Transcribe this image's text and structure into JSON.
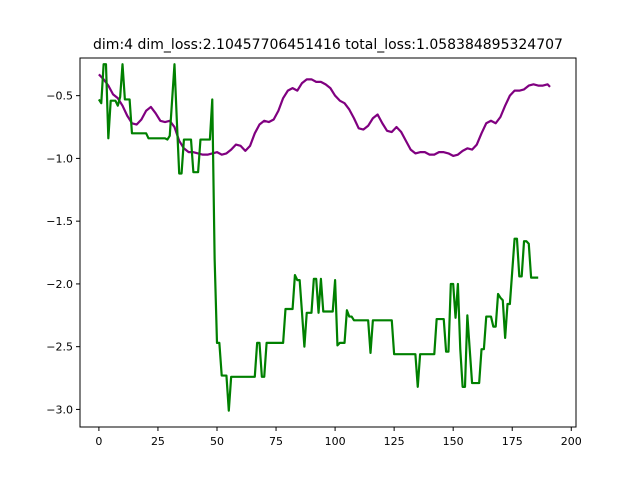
{
  "chart_data": {
    "type": "line",
    "title": "dim:4 dim_loss:2.10457706451416 total_loss:1.058384895324707",
    "xlabel": "",
    "ylabel": "",
    "xlim": [
      -8,
      202
    ],
    "ylim": [
      -3.14,
      -0.2
    ],
    "xticks": [
      0,
      25,
      50,
      75,
      100,
      125,
      150,
      175,
      200
    ],
    "yticks": [
      -0.5,
      -1.0,
      -1.5,
      -2.0,
      -2.5,
      -3.0
    ],
    "ytick_labels": [
      "−0.5",
      "−1.0",
      "−1.5",
      "−2.0",
      "−2.5",
      "−3.0"
    ],
    "grid": false,
    "series": [
      {
        "color": "#800080",
        "points": [
          [
            0,
            -0.33
          ],
          [
            2,
            -0.37
          ],
          [
            4,
            -0.42
          ],
          [
            6,
            -0.49
          ],
          [
            8,
            -0.52
          ],
          [
            10,
            -0.58
          ],
          [
            12,
            -0.66
          ],
          [
            14,
            -0.72
          ],
          [
            16,
            -0.73
          ],
          [
            18,
            -0.69
          ],
          [
            20,
            -0.62
          ],
          [
            22,
            -0.59
          ],
          [
            24,
            -0.64
          ],
          [
            26,
            -0.7
          ],
          [
            28,
            -0.71
          ],
          [
            30,
            -0.7
          ],
          [
            32,
            -0.75
          ],
          [
            34,
            -0.86
          ],
          [
            36,
            -0.92
          ],
          [
            38,
            -0.95
          ],
          [
            40,
            -0.95
          ],
          [
            42,
            -0.96
          ],
          [
            44,
            -0.97
          ],
          [
            46,
            -0.97
          ],
          [
            48,
            -0.96
          ],
          [
            50,
            -0.95
          ],
          [
            52,
            -0.97
          ],
          [
            54,
            -0.96
          ],
          [
            56,
            -0.93
          ],
          [
            58,
            -0.89
          ],
          [
            60,
            -0.9
          ],
          [
            62,
            -0.94
          ],
          [
            64,
            -0.9
          ],
          [
            66,
            -0.8
          ],
          [
            68,
            -0.73
          ],
          [
            70,
            -0.7
          ],
          [
            72,
            -0.71
          ],
          [
            74,
            -0.69
          ],
          [
            76,
            -0.62
          ],
          [
            78,
            -0.52
          ],
          [
            80,
            -0.46
          ],
          [
            82,
            -0.44
          ],
          [
            84,
            -0.46
          ],
          [
            86,
            -0.4
          ],
          [
            88,
            -0.37
          ],
          [
            90,
            -0.37
          ],
          [
            92,
            -0.39
          ],
          [
            94,
            -0.39
          ],
          [
            96,
            -0.41
          ],
          [
            98,
            -0.44
          ],
          [
            100,
            -0.5
          ],
          [
            102,
            -0.54
          ],
          [
            104,
            -0.56
          ],
          [
            106,
            -0.61
          ],
          [
            108,
            -0.68
          ],
          [
            110,
            -0.76
          ],
          [
            112,
            -0.77
          ],
          [
            114,
            -0.74
          ],
          [
            116,
            -0.68
          ],
          [
            118,
            -0.65
          ],
          [
            120,
            -0.72
          ],
          [
            122,
            -0.78
          ],
          [
            124,
            -0.79
          ],
          [
            126,
            -0.75
          ],
          [
            128,
            -0.79
          ],
          [
            130,
            -0.86
          ],
          [
            132,
            -0.93
          ],
          [
            134,
            -0.96
          ],
          [
            136,
            -0.95
          ],
          [
            138,
            -0.95
          ],
          [
            140,
            -0.97
          ],
          [
            142,
            -0.97
          ],
          [
            144,
            -0.95
          ],
          [
            146,
            -0.95
          ],
          [
            148,
            -0.96
          ],
          [
            150,
            -0.98
          ],
          [
            152,
            -0.97
          ],
          [
            154,
            -0.94
          ],
          [
            156,
            -0.92
          ],
          [
            158,
            -0.93
          ],
          [
            160,
            -0.89
          ],
          [
            162,
            -0.8
          ],
          [
            164,
            -0.72
          ],
          [
            166,
            -0.7
          ],
          [
            168,
            -0.72
          ],
          [
            170,
            -0.67
          ],
          [
            172,
            -0.58
          ],
          [
            174,
            -0.5
          ],
          [
            176,
            -0.46
          ],
          [
            178,
            -0.46
          ],
          [
            180,
            -0.45
          ],
          [
            182,
            -0.42
          ],
          [
            184,
            -0.41
          ],
          [
            186,
            -0.42
          ],
          [
            188,
            -0.42
          ],
          [
            190,
            -0.41
          ],
          [
            191,
            -0.43
          ]
        ]
      },
      {
        "color": "#008000",
        "points": [
          [
            0,
            -0.53
          ],
          [
            1,
            -0.56
          ],
          [
            2,
            -0.25
          ],
          [
            3,
            -0.25
          ],
          [
            4,
            -0.84
          ],
          [
            5,
            -0.54
          ],
          [
            7,
            -0.54
          ],
          [
            8,
            -0.58
          ],
          [
            9,
            -0.51
          ],
          [
            10,
            -0.25
          ],
          [
            11,
            -0.53
          ],
          [
            12,
            -0.53
          ],
          [
            13,
            -0.53
          ],
          [
            14,
            -0.8
          ],
          [
            20,
            -0.8
          ],
          [
            21,
            -0.84
          ],
          [
            28,
            -0.84
          ],
          [
            29,
            -0.85
          ],
          [
            30,
            -0.82
          ],
          [
            32,
            -0.25
          ],
          [
            33,
            -0.7
          ],
          [
            34,
            -1.12
          ],
          [
            35,
            -1.12
          ],
          [
            36,
            -0.85
          ],
          [
            39,
            -0.85
          ],
          [
            40,
            -1.11
          ],
          [
            42,
            -1.11
          ],
          [
            43,
            -0.85
          ],
          [
            47,
            -0.85
          ],
          [
            48,
            -0.53
          ],
          [
            49,
            -1.8
          ],
          [
            50,
            -2.47
          ],
          [
            51,
            -2.47
          ],
          [
            52,
            -2.73
          ],
          [
            54,
            -2.73
          ],
          [
            55,
            -3.01
          ],
          [
            56,
            -2.74
          ],
          [
            66,
            -2.74
          ],
          [
            67,
            -2.47
          ],
          [
            68,
            -2.47
          ],
          [
            69,
            -2.74
          ],
          [
            70,
            -2.74
          ],
          [
            71,
            -2.47
          ],
          [
            78,
            -2.47
          ],
          [
            79,
            -2.2
          ],
          [
            82,
            -2.2
          ],
          [
            83,
            -1.93
          ],
          [
            84,
            -1.97
          ],
          [
            85,
            -1.97
          ],
          [
            86,
            -2.23
          ],
          [
            87,
            -2.5
          ],
          [
            88,
            -2.23
          ],
          [
            90,
            -2.23
          ],
          [
            91,
            -1.96
          ],
          [
            92,
            -1.96
          ],
          [
            93,
            -2.23
          ],
          [
            94,
            -1.96
          ],
          [
            95,
            -2.22
          ],
          [
            99,
            -2.22
          ],
          [
            100,
            -1.97
          ],
          [
            101,
            -2.49
          ],
          [
            102,
            -2.47
          ],
          [
            104,
            -2.47
          ],
          [
            105,
            -2.21
          ],
          [
            106,
            -2.26
          ],
          [
            107,
            -2.26
          ],
          [
            108,
            -2.29
          ],
          [
            114,
            -2.29
          ],
          [
            115,
            -2.55
          ],
          [
            116,
            -2.29
          ],
          [
            124,
            -2.29
          ],
          [
            125,
            -2.56
          ],
          [
            134,
            -2.56
          ],
          [
            135,
            -2.82
          ],
          [
            136,
            -2.56
          ],
          [
            142,
            -2.56
          ],
          [
            143,
            -2.28
          ],
          [
            146,
            -2.28
          ],
          [
            147,
            -2.54
          ],
          [
            148,
            -2.54
          ],
          [
            149,
            -2.0
          ],
          [
            150,
            -2.0
          ],
          [
            151,
            -2.27
          ],
          [
            152,
            -2.0
          ],
          [
            153,
            -2.52
          ],
          [
            154,
            -2.82
          ],
          [
            155,
            -2.82
          ],
          [
            156,
            -2.25
          ],
          [
            157,
            -2.52
          ],
          [
            158,
            -2.79
          ],
          [
            161,
            -2.79
          ],
          [
            162,
            -2.52
          ],
          [
            163,
            -2.52
          ],
          [
            164,
            -2.26
          ],
          [
            166,
            -2.26
          ],
          [
            167,
            -2.34
          ],
          [
            168,
            -2.34
          ],
          [
            169,
            -2.08
          ],
          [
            170,
            -2.11
          ],
          [
            171,
            -2.13
          ],
          [
            172,
            -2.43
          ],
          [
            173,
            -2.16
          ],
          [
            174,
            -2.16
          ],
          [
            175,
            -1.9
          ],
          [
            176,
            -1.64
          ],
          [
            177,
            -1.64
          ],
          [
            178,
            -1.94
          ],
          [
            179,
            -1.94
          ],
          [
            180,
            -1.66
          ],
          [
            181,
            -1.66
          ],
          [
            182,
            -1.68
          ],
          [
            183,
            -1.95
          ],
          [
            186,
            -1.95
          ]
        ]
      }
    ]
  }
}
